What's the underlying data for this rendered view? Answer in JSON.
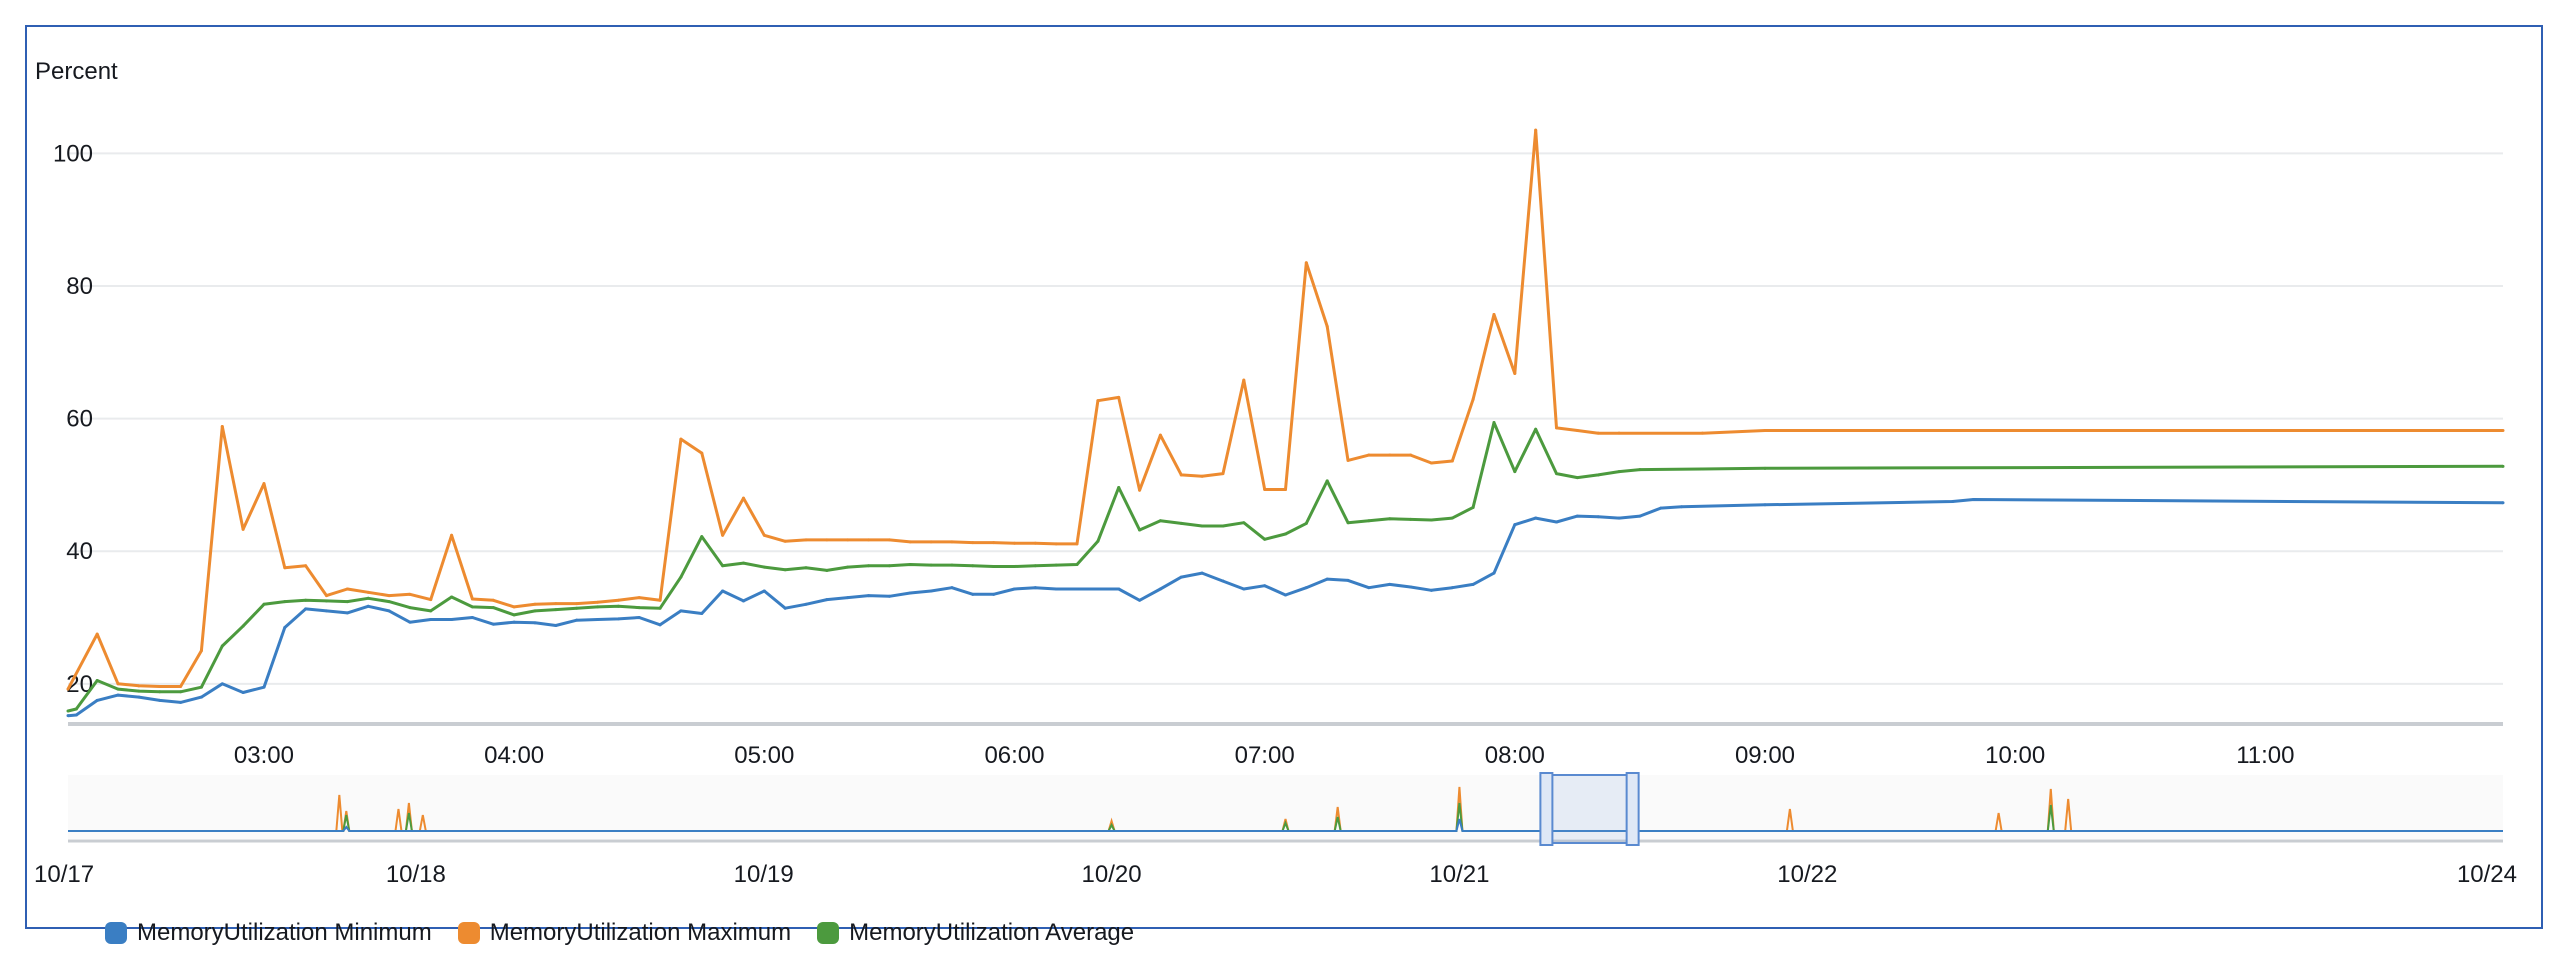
{
  "chart_data": {
    "type": "line",
    "ylabel": "Percent",
    "ylim": [
      15,
      110
    ],
    "y_ticks": [
      "20",
      "40",
      "60",
      "80",
      "100"
    ],
    "x_range": [
      "02:13",
      "11:57"
    ],
    "x_ticks": [
      "03:00",
      "04:00",
      "05:00",
      "06:00",
      "07:00",
      "08:00",
      "09:00",
      "10:00",
      "11:00"
    ],
    "grid": true,
    "legend_position": "bottom-left",
    "series": [
      {
        "name": "MemoryUtilization Minimum",
        "color": "#3a7ec3",
        "points": [
          [
            "02:13",
            15.2
          ],
          [
            "02:15",
            15.3
          ],
          [
            "02:20",
            17.5
          ],
          [
            "02:25",
            18.3
          ],
          [
            "02:30",
            18.0
          ],
          [
            "02:35",
            17.5
          ],
          [
            "02:40",
            17.2
          ],
          [
            "02:45",
            18.0
          ],
          [
            "02:50",
            20.0
          ],
          [
            "02:55",
            18.7
          ],
          [
            "03:00",
            19.5
          ],
          [
            "03:05",
            28.5
          ],
          [
            "03:10",
            31.3
          ],
          [
            "03:15",
            31.0
          ],
          [
            "03:20",
            30.7
          ],
          [
            "03:25",
            31.7
          ],
          [
            "03:30",
            31.0
          ],
          [
            "03:35",
            29.3
          ],
          [
            "03:40",
            29.7
          ],
          [
            "03:45",
            29.7
          ],
          [
            "03:50",
            30.0
          ],
          [
            "03:55",
            29.0
          ],
          [
            "04:00",
            29.3
          ],
          [
            "04:05",
            29.2
          ],
          [
            "04:10",
            28.8
          ],
          [
            "04:15",
            29.6
          ],
          [
            "04:20",
            29.7
          ],
          [
            "04:25",
            29.8
          ],
          [
            "04:30",
            30.0
          ],
          [
            "04:35",
            28.9
          ],
          [
            "04:40",
            31.0
          ],
          [
            "04:45",
            30.6
          ],
          [
            "04:50",
            34.0
          ],
          [
            "04:55",
            32.5
          ],
          [
            "05:00",
            34.0
          ],
          [
            "05:05",
            31.4
          ],
          [
            "05:10",
            32.0
          ],
          [
            "05:15",
            32.7
          ],
          [
            "05:20",
            33.0
          ],
          [
            "05:25",
            33.3
          ],
          [
            "05:30",
            33.2
          ],
          [
            "05:35",
            33.7
          ],
          [
            "05:40",
            34.0
          ],
          [
            "05:45",
            34.5
          ],
          [
            "05:50",
            33.5
          ],
          [
            "05:55",
            33.5
          ],
          [
            "06:00",
            34.3
          ],
          [
            "06:05",
            34.5
          ],
          [
            "06:10",
            34.3
          ],
          [
            "06:15",
            34.3
          ],
          [
            "06:20",
            34.3
          ],
          [
            "06:25",
            34.3
          ],
          [
            "06:30",
            32.6
          ],
          [
            "06:35",
            34.3
          ],
          [
            "06:40",
            36.1
          ],
          [
            "06:45",
            36.7
          ],
          [
            "06:50",
            35.5
          ],
          [
            "06:55",
            34.3
          ],
          [
            "07:00",
            34.8
          ],
          [
            "07:05",
            33.4
          ],
          [
            "07:10",
            34.5
          ],
          [
            "07:15",
            35.8
          ],
          [
            "07:20",
            35.6
          ],
          [
            "07:25",
            34.5
          ],
          [
            "07:30",
            35.0
          ],
          [
            "07:35",
            34.6
          ],
          [
            "07:40",
            34.1
          ],
          [
            "07:45",
            34.5
          ],
          [
            "07:50",
            35.0
          ],
          [
            "07:55",
            36.7
          ],
          [
            "08:00",
            44.0
          ],
          [
            "08:05",
            45.0
          ],
          [
            "08:10",
            44.4
          ],
          [
            "08:15",
            45.3
          ],
          [
            "08:20",
            45.2
          ],
          [
            "08:25",
            45.0
          ],
          [
            "08:30",
            45.3
          ],
          [
            "08:35",
            46.5
          ],
          [
            "08:40",
            46.7
          ],
          [
            "09:00",
            47.0
          ],
          [
            "09:45",
            47.5
          ],
          [
            "09:50",
            47.8
          ],
          [
            "11:57",
            47.3
          ]
        ]
      },
      {
        "name": "MemoryUtilization Maximum",
        "color": "#ed8b30",
        "points": [
          [
            "02:13",
            19.2
          ],
          [
            "02:20",
            27.5
          ],
          [
            "02:25",
            20.0
          ],
          [
            "02:30",
            19.7
          ],
          [
            "02:35",
            19.6
          ],
          [
            "02:40",
            19.6
          ],
          [
            "02:45",
            25.0
          ],
          [
            "02:50",
            58.8
          ],
          [
            "02:55",
            43.3
          ],
          [
            "03:00",
            50.2
          ],
          [
            "03:05",
            37.5
          ],
          [
            "03:10",
            37.8
          ],
          [
            "03:15",
            33.3
          ],
          [
            "03:20",
            34.3
          ],
          [
            "03:25",
            33.8
          ],
          [
            "03:30",
            33.3
          ],
          [
            "03:35",
            33.5
          ],
          [
            "03:40",
            32.7
          ],
          [
            "03:45",
            42.4
          ],
          [
            "03:50",
            32.8
          ],
          [
            "03:55",
            32.6
          ],
          [
            "04:00",
            31.6
          ],
          [
            "04:05",
            32.0
          ],
          [
            "04:10",
            32.1
          ],
          [
            "04:15",
            32.1
          ],
          [
            "04:20",
            32.3
          ],
          [
            "04:25",
            32.6
          ],
          [
            "04:30",
            33.0
          ],
          [
            "04:35",
            32.6
          ],
          [
            "04:40",
            56.9
          ],
          [
            "04:45",
            54.8
          ],
          [
            "04:50",
            42.4
          ],
          [
            "04:55",
            48.0
          ],
          [
            "05:00",
            42.4
          ],
          [
            "05:05",
            41.5
          ],
          [
            "05:10",
            41.7
          ],
          [
            "05:15",
            41.7
          ],
          [
            "05:20",
            41.7
          ],
          [
            "05:25",
            41.7
          ],
          [
            "05:30",
            41.7
          ],
          [
            "05:35",
            41.4
          ],
          [
            "05:40",
            41.4
          ],
          [
            "05:45",
            41.4
          ],
          [
            "05:50",
            41.3
          ],
          [
            "05:55",
            41.3
          ],
          [
            "06:00",
            41.2
          ],
          [
            "06:05",
            41.2
          ],
          [
            "06:10",
            41.1
          ],
          [
            "06:15",
            41.1
          ],
          [
            "06:20",
            62.7
          ],
          [
            "06:25",
            63.2
          ],
          [
            "06:30",
            49.2
          ],
          [
            "06:35",
            57.5
          ],
          [
            "06:40",
            51.5
          ],
          [
            "06:45",
            51.3
          ],
          [
            "06:50",
            51.7
          ],
          [
            "06:55",
            65.8
          ],
          [
            "07:00",
            49.3
          ],
          [
            "07:05",
            49.3
          ],
          [
            "07:10",
            83.5
          ],
          [
            "07:15",
            73.9
          ],
          [
            "07:20",
            53.7
          ],
          [
            "07:25",
            54.5
          ],
          [
            "07:30",
            54.5
          ],
          [
            "07:35",
            54.5
          ],
          [
            "07:40",
            53.3
          ],
          [
            "07:45",
            53.6
          ],
          [
            "07:50",
            62.9
          ],
          [
            "07:55",
            75.7
          ],
          [
            "08:00",
            66.8
          ],
          [
            "08:05",
            103.5
          ],
          [
            "08:10",
            58.6
          ],
          [
            "08:15",
            58.2
          ],
          [
            "08:20",
            57.8
          ],
          [
            "08:25",
            57.8
          ],
          [
            "08:45",
            57.8
          ],
          [
            "09:00",
            58.2
          ],
          [
            "11:57",
            58.2
          ]
        ]
      },
      {
        "name": "MemoryUtilization Average",
        "color": "#4c9a3e",
        "points": [
          [
            "02:13",
            15.9
          ],
          [
            "02:15",
            16.2
          ],
          [
            "02:20",
            20.5
          ],
          [
            "02:25",
            19.2
          ],
          [
            "02:30",
            18.9
          ],
          [
            "02:35",
            18.8
          ],
          [
            "02:40",
            18.8
          ],
          [
            "02:45",
            19.5
          ],
          [
            "02:50",
            25.7
          ],
          [
            "02:55",
            28.7
          ],
          [
            "03:00",
            32.0
          ],
          [
            "03:05",
            32.4
          ],
          [
            "03:10",
            32.6
          ],
          [
            "03:15",
            32.5
          ],
          [
            "03:20",
            32.4
          ],
          [
            "03:25",
            32.9
          ],
          [
            "03:30",
            32.4
          ],
          [
            "03:35",
            31.5
          ],
          [
            "03:40",
            31.0
          ],
          [
            "03:45",
            33.1
          ],
          [
            "03:50",
            31.6
          ],
          [
            "03:55",
            31.5
          ],
          [
            "04:00",
            30.4
          ],
          [
            "04:05",
            31.0
          ],
          [
            "04:10",
            31.2
          ],
          [
            "04:15",
            31.4
          ],
          [
            "04:20",
            31.6
          ],
          [
            "04:25",
            31.7
          ],
          [
            "04:30",
            31.5
          ],
          [
            "04:35",
            31.4
          ],
          [
            "04:40",
            36.1
          ],
          [
            "04:45",
            42.2
          ],
          [
            "04:50",
            37.8
          ],
          [
            "04:55",
            38.2
          ],
          [
            "05:00",
            37.6
          ],
          [
            "05:05",
            37.2
          ],
          [
            "05:10",
            37.5
          ],
          [
            "05:15",
            37.1
          ],
          [
            "05:20",
            37.6
          ],
          [
            "05:25",
            37.8
          ],
          [
            "05:30",
            37.8
          ],
          [
            "05:35",
            38.0
          ],
          [
            "05:40",
            37.9
          ],
          [
            "05:45",
            37.9
          ],
          [
            "05:50",
            37.8
          ],
          [
            "05:55",
            37.7
          ],
          [
            "06:00",
            37.7
          ],
          [
            "06:05",
            37.8
          ],
          [
            "06:10",
            37.9
          ],
          [
            "06:15",
            38.0
          ],
          [
            "06:20",
            41.5
          ],
          [
            "06:25",
            49.6
          ],
          [
            "06:30",
            43.2
          ],
          [
            "06:35",
            44.6
          ],
          [
            "06:40",
            44.2
          ],
          [
            "06:45",
            43.8
          ],
          [
            "06:50",
            43.8
          ],
          [
            "06:55",
            44.3
          ],
          [
            "07:00",
            41.8
          ],
          [
            "07:05",
            42.6
          ],
          [
            "07:10",
            44.2
          ],
          [
            "07:15",
            50.6
          ],
          [
            "07:20",
            44.3
          ],
          [
            "07:25",
            44.6
          ],
          [
            "07:30",
            44.9
          ],
          [
            "07:35",
            44.8
          ],
          [
            "07:40",
            44.7
          ],
          [
            "07:45",
            45.0
          ],
          [
            "07:50",
            46.6
          ],
          [
            "07:55",
            59.4
          ],
          [
            "08:00",
            52.0
          ],
          [
            "08:05",
            58.4
          ],
          [
            "08:10",
            51.7
          ],
          [
            "08:15",
            51.1
          ],
          [
            "08:20",
            51.5
          ],
          [
            "08:25",
            52.0
          ],
          [
            "08:30",
            52.3
          ],
          [
            "08:45",
            52.4
          ],
          [
            "09:00",
            52.5
          ],
          [
            "11:57",
            52.8
          ]
        ]
      }
    ],
    "overview": {
      "date_labels": [
        "10/17",
        "10/18",
        "10/19",
        "10/20",
        "10/21",
        "10/22",
        "10/24"
      ],
      "selected_range": [
        "10/21 06:00",
        "10/21 11:57"
      ]
    }
  }
}
